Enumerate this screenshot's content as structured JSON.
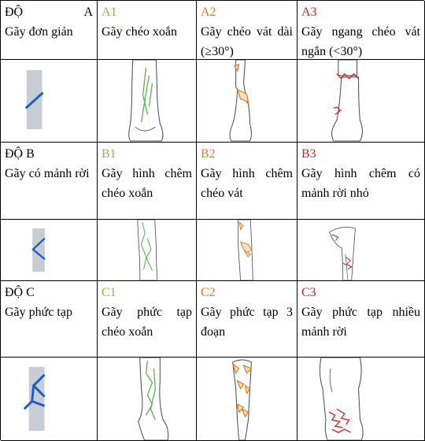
{
  "rows": [
    {
      "degree": {
        "label": "ĐỘ",
        "letter": "A",
        "desc": "Gãy đơn giản"
      },
      "subtypes": [
        {
          "code": "A1",
          "desc": "Gãy chéo xoắn",
          "color": "#7fbf3f"
        },
        {
          "code": "A2",
          "desc": "Gãy chéo vát dài (≥30°)",
          "color": "#e07b1a"
        },
        {
          "code": "A3",
          "desc": "Gãy ngang chéo vát ngắn (<30°)",
          "color": "#d42020"
        }
      ]
    },
    {
      "degree": {
        "label": "ĐỘ B",
        "desc": "Gãy có mảnh rời"
      },
      "subtypes": [
        {
          "code": "B1",
          "desc": "Gãy hình chêm chéo xoắn",
          "color": "#7fbf3f"
        },
        {
          "code": "B2",
          "desc": "Gãy hình chêm chéo vát",
          "color": "#e07b1a"
        },
        {
          "code": "B3",
          "desc": "Gãy hình chêm có mảnh rời nhỏ",
          "color": "#d42020"
        }
      ]
    },
    {
      "degree": {
        "label": "ĐỘ C",
        "desc": "Gãy phức tạp"
      },
      "subtypes": [
        {
          "code": "C1",
          "desc": "Gãy phức tạp chéo xoắn",
          "color": "#7fbf3f"
        },
        {
          "code": "C2",
          "desc": "Gãy phức tạp 3 đoạn",
          "color": "#e07b1a"
        },
        {
          "code": "C3",
          "desc": "Gãy phức tạp nhiều mảnh rời",
          "color": "#d42020"
        }
      ]
    }
  ]
}
